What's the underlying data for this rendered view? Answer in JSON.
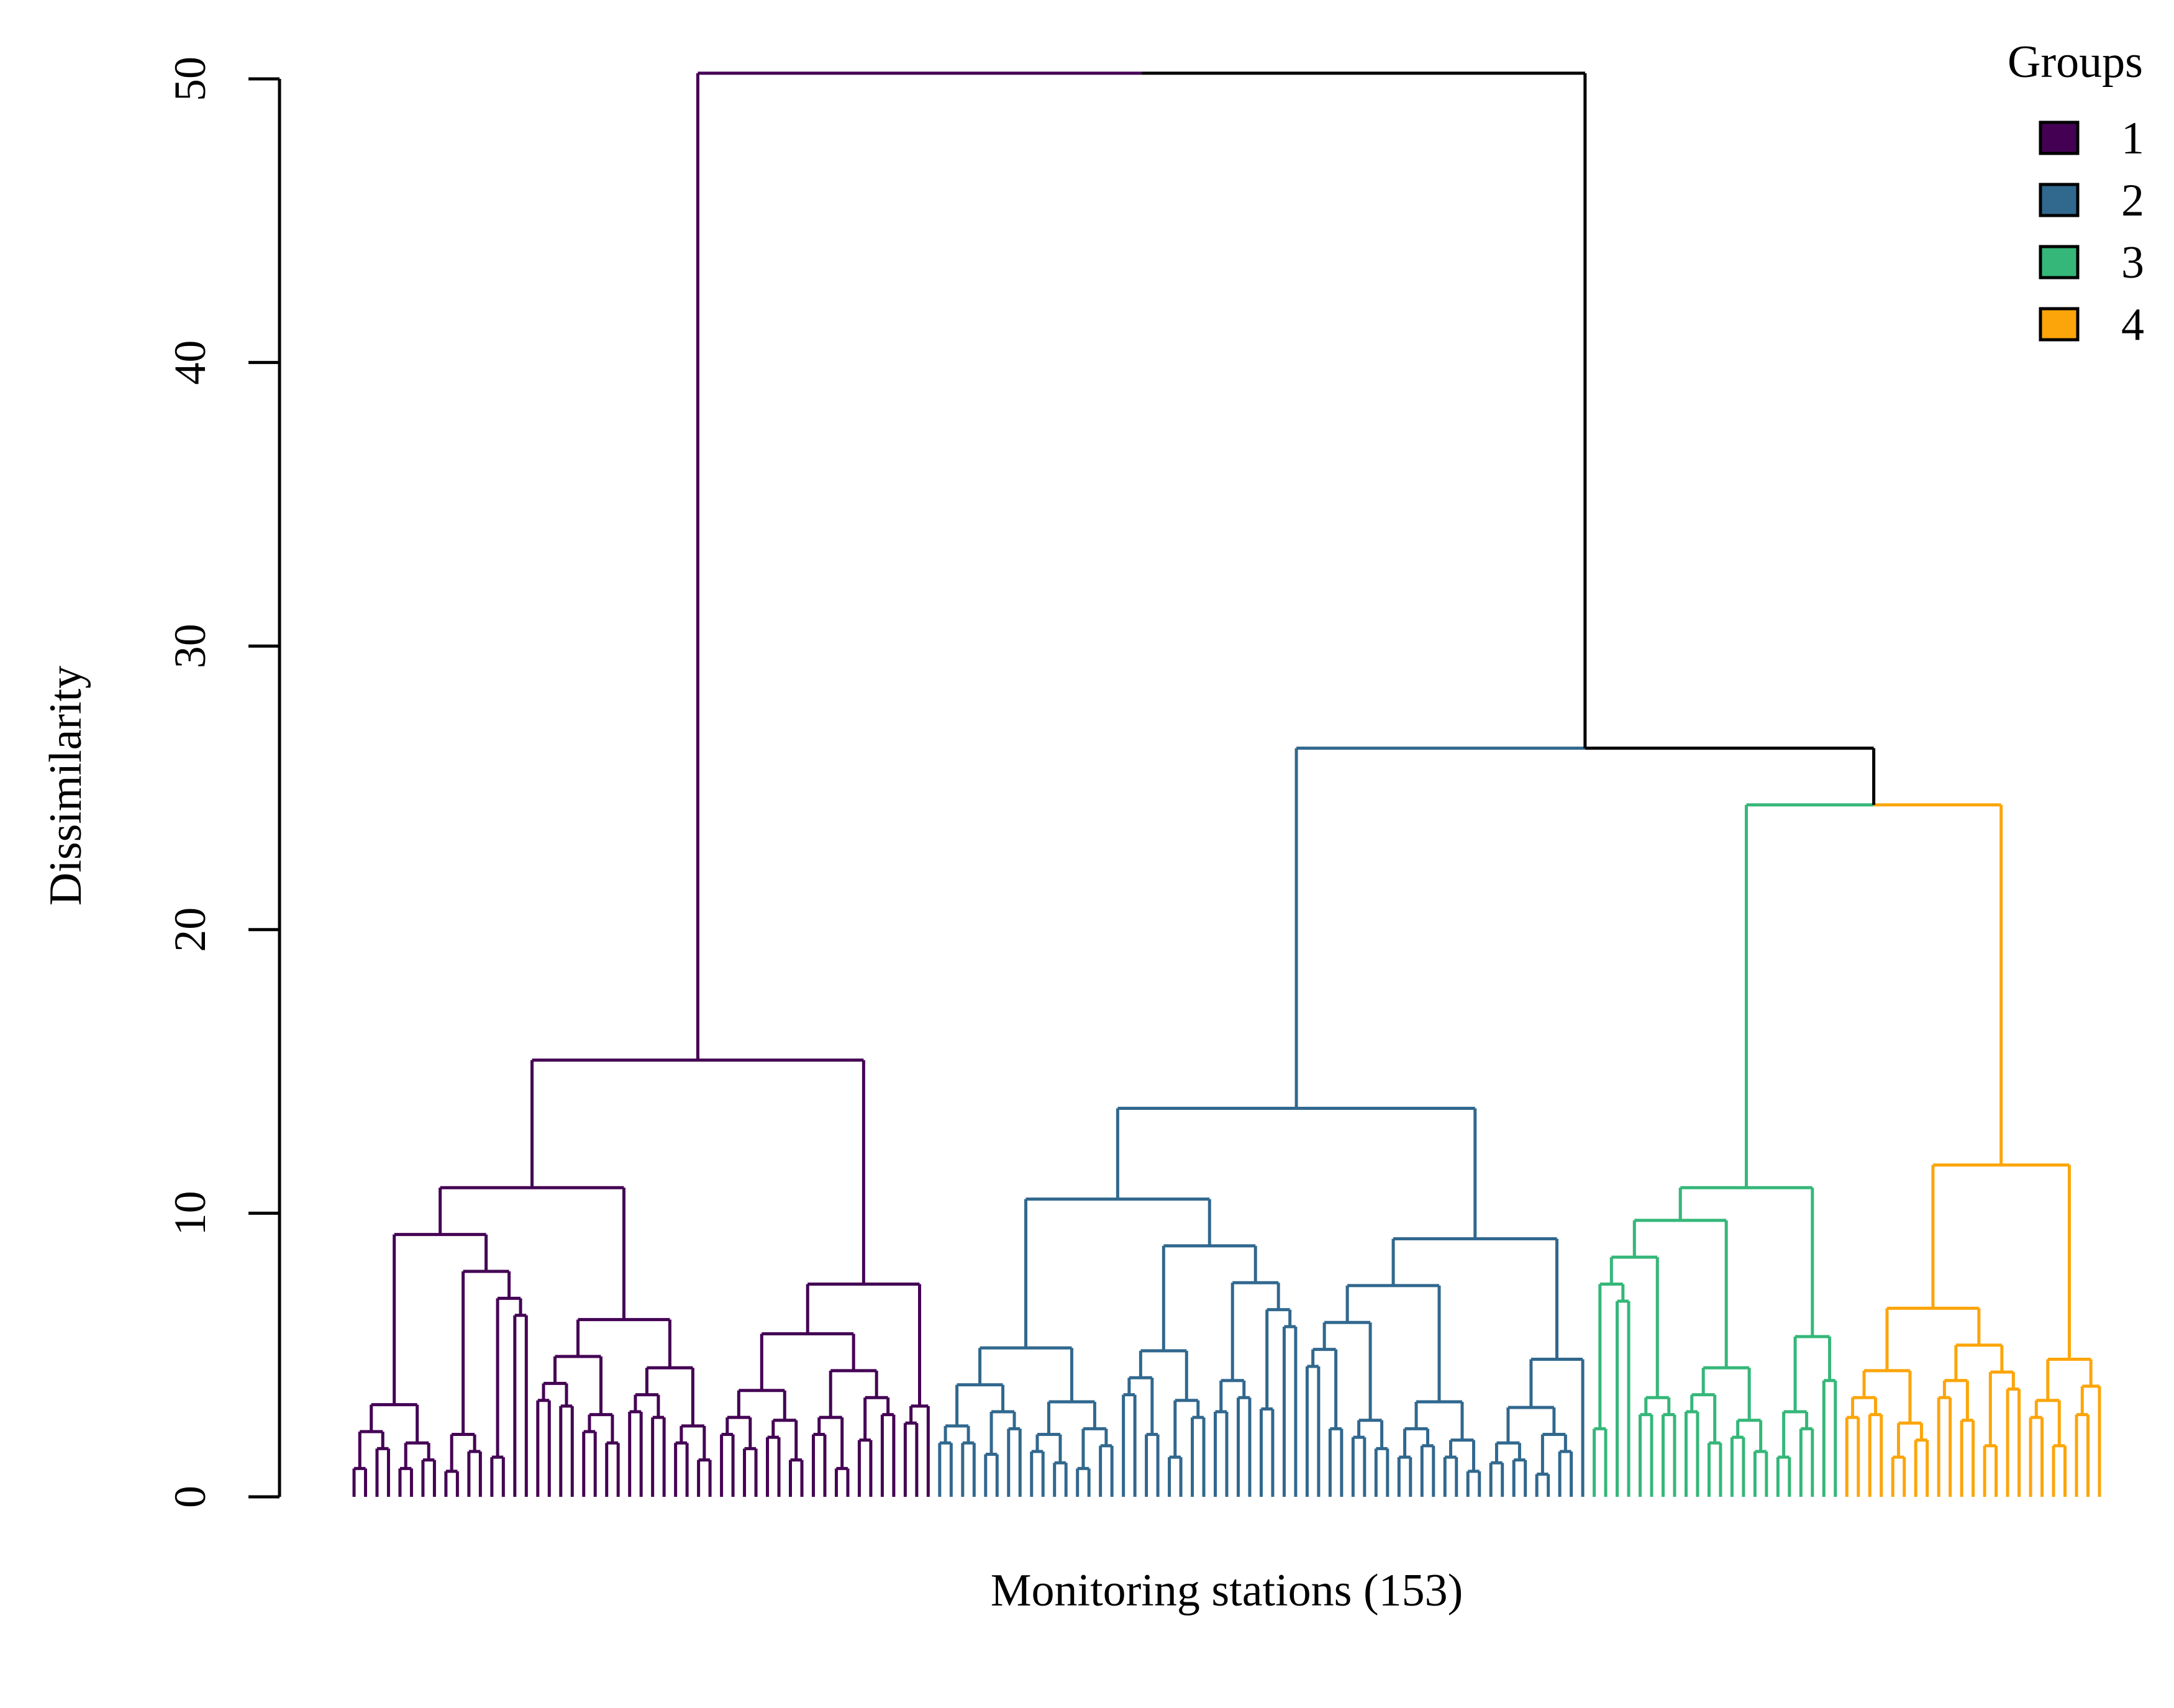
{
  "chart_data": {
    "type": "dendrogram",
    "xlabel": "Monitoring stations (153)",
    "ylabel": "Dissimilarity",
    "ylim": [
      0,
      50
    ],
    "y_ticks": [
      "0",
      "10",
      "20",
      "30",
      "40",
      "50"
    ],
    "leaf_count": 153,
    "legend": {
      "title": "Groups",
      "placement": "top-right",
      "items": [
        {
          "label": "1",
          "color": "#440154",
          "leaves": 51
        },
        {
          "label": "2",
          "color": "#31688e",
          "leaves": 57
        },
        {
          "label": "3",
          "color": "#35b779",
          "leaves": 22
        },
        {
          "label": "4",
          "color": "#fca50a",
          "leaves": 23
        }
      ]
    },
    "root_color": "#000000",
    "top_merges": [
      {
        "height": 50.2,
        "joins": [
          "group 1",
          "groups 2-4"
        ]
      },
      {
        "height": 26.4,
        "joins": [
          "group 2",
          "groups 3-4"
        ]
      },
      {
        "height": 24.4,
        "joins": [
          "group 3",
          "group 4"
        ]
      }
    ],
    "group_subtrees": [
      {
        "group": "1",
        "tree": [
          [
            [
              [
                1.0,
                1.7,
                1.0
              ],
              [
                1.3,
                0.9,
                1.6,
                1.4
              ]
            ],
            [
              6.4,
              3.4,
              3.2,
              2.3,
              1.9,
              3.0,
              2.8,
              1.9,
              1.3,
              2.2,
              1.7,
              2.1,
              1.3,
              2.2,
              1.0,
              2.0,
              2.9,
              2.6,
              1.7,
              2.1,
              3.0,
              1.4,
              1.6,
              1.0
            ]
          ],
          [
            [
              1.2,
              0.7,
              1.4,
              1.6,
              1.2,
              0.5,
              0.9,
              1.1,
              1.4,
              1.0,
              1.6,
              0.8,
              1.5,
              1.2,
              1.0,
              0.6,
              1.3,
              1.1,
              0.9,
              1.5,
              1.2,
              0.8,
              1.0,
              1.4,
              0.7,
              1.1
            ]
          ]
        ]
      },
      {
        "group": "2",
        "tree": [
          [
            1.9,
            1.9,
            1.5,
            2.4,
            1.6,
            1.2,
            1.0,
            1.8,
            3.6,
            2.2,
            1.4,
            2.8,
            3.0,
            3.5,
            3.1,
            6.0,
            4.6,
            2.4,
            2.1,
            1.7,
            1.4,
            1.8,
            1.4,
            0.9,
            1.2,
            1.3,
            0.8,
            1.6,
            1.9,
            1.5,
            2.0,
            1.1,
            1.4,
            1.7,
            4.7,
            3.0,
            1.3,
            3.4,
            1.9,
            2.0,
            2.2,
            1.2,
            1.7,
            1.5,
            1.1,
            1.9,
            1.3,
            1.6,
            1.0,
            1.8,
            1.4,
            1.2,
            1.5,
            1.3,
            0.9,
            1.1,
            1.6
          ]
        ]
      },
      {
        "group": "3",
        "tree": [
          [
            2.4,
            6.9,
            2.9,
            2.9,
            3.0,
            1.9,
            2.1,
            1.6,
            1.4,
            2.4,
            4.1,
            3.9,
            5.0,
            2.0,
            1.5,
            1.2,
            1.8,
            1.6,
            2.2,
            1.3,
            1.0,
            1.4
          ]
        ]
      },
      {
        "group": "4",
        "tree": [
          [
            2.8,
            2.9,
            1.4,
            2.0,
            3.5,
            2.7,
            1.8,
            3.8,
            2.8,
            1.8,
            2.9,
            3.3,
            5.2,
            2.4,
            1.9,
            1.6,
            1.3,
            2.1,
            1.5,
            1.2,
            1.7,
            1.1,
            1.4
          ]
        ]
      }
    ]
  }
}
